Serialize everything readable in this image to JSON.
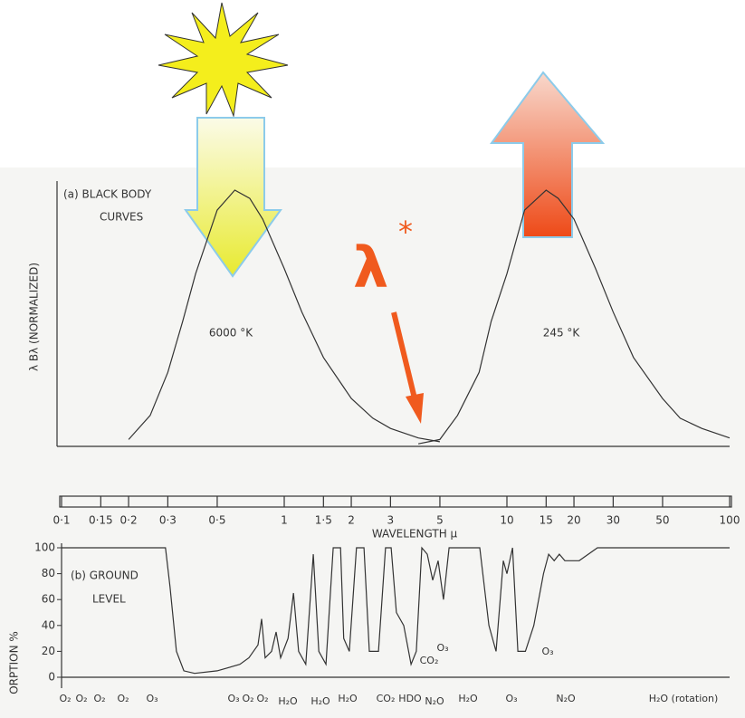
{
  "chart_data": [
    {
      "type": "line",
      "title": "(a) BLACK BODY",
      "subtitle": "CURVES",
      "y_label": "λ Bλ (NORMALIZED)",
      "x_label": "WAVELENGTH μ",
      "xscale": "log",
      "xlim": [
        0.1,
        100
      ],
      "ylim": [
        0,
        1
      ],
      "xticks": [
        {
          "value": 0.1,
          "label": "0·1"
        },
        {
          "value": 0.15,
          "label": "0·15"
        },
        {
          "value": 0.2,
          "label": "0·2"
        },
        {
          "value": 0.3,
          "label": "0·3"
        },
        {
          "value": 0.5,
          "label": "0·5"
        },
        1,
        {
          "value": 1.5,
          "label": "1·5"
        },
        2,
        3,
        5,
        10,
        15,
        20,
        30,
        50,
        100
      ],
      "series": [
        {
          "name": "6000 °K",
          "color": "#333333",
          "x": [
            0.2,
            0.25,
            0.3,
            0.35,
            0.4,
            0.5,
            0.6,
            0.7,
            0.8,
            1,
            1.2,
            1.5,
            2,
            2.5,
            3,
            4,
            5
          ],
          "values": [
            0.027,
            0.121,
            0.289,
            0.488,
            0.674,
            0.922,
            1.0,
            0.968,
            0.887,
            0.694,
            0.524,
            0.347,
            0.187,
            0.11,
            0.07,
            0.033,
            0.018
          ]
        },
        {
          "name": "245 °K",
          "color": "#333333",
          "x": [
            4,
            5,
            6,
            7.5,
            8.5,
            10,
            12,
            15,
            17,
            20,
            25,
            30,
            37,
            50,
            60,
            75,
            100
          ],
          "values": [
            0.01,
            0.027,
            0.121,
            0.289,
            0.488,
            0.674,
            0.922,
            1.0,
            0.968,
            0.887,
            0.694,
            0.524,
            0.347,
            0.187,
            0.11,
            0.07,
            0.033
          ]
        }
      ],
      "labels": [
        "λ",
        "*"
      ]
    },
    {
      "type": "line",
      "title": "(b) GROUND",
      "subtitle": "LEVEL",
      "y_label": "ORPTION %",
      "xscale": "log",
      "xlim": [
        0.1,
        100
      ],
      "ylim": [
        0,
        100
      ],
      "yticks": [
        0,
        20,
        40,
        60,
        80,
        100
      ],
      "series": [
        {
          "color": "#333333",
          "x": [
            0.1,
            0.293,
            0.307,
            0.328,
            0.354,
            0.396,
            0.5,
            0.632,
            0.694,
            0.762,
            0.791,
            0.821,
            0.877,
            0.919,
            0.963,
            1.04,
            1.1,
            1.16,
            1.25,
            1.35,
            1.43,
            1.54,
            1.66,
            1.79,
            1.85,
            1.96,
            2.11,
            2.28,
            2.41,
            2.65,
            2.85,
            3.02,
            3.19,
            3.44,
            3.71,
            3.92,
            4.15,
            4.39,
            4.64,
            4.91,
            5.19,
            5.5,
            7.55,
            8.3,
            8.94,
            9.63,
            10,
            10.6,
            11.2,
            12.1,
            13.2,
            14.6,
            15.4,
            16.3,
            17.2,
            18.2,
            21.1,
            25.5,
            100
          ],
          "values": [
            100,
            100,
            70,
            20,
            5,
            3,
            5,
            10,
            15,
            25,
            45,
            15,
            20,
            35,
            15,
            30,
            65,
            20,
            10,
            95,
            20,
            10,
            100,
            100,
            30,
            20,
            100,
            100,
            20,
            20,
            100,
            100,
            50,
            40,
            10,
            20,
            100,
            95,
            75,
            90,
            60,
            100,
            100,
            40,
            20,
            90,
            80,
            100,
            20,
            20,
            40,
            80,
            95,
            90,
            95,
            90,
            90,
            100,
            100
          ]
        }
      ],
      "annotations": [
        "O₂",
        "O₂",
        "O₂",
        "O₂",
        "O₃",
        "O₃",
        "O₂",
        "O₂",
        "H₂O",
        "H₂O",
        "H₂O",
        "CO₂",
        "HDO",
        "N₂O",
        "H₂O",
        "O₃",
        "N₂O",
        "H₂O (rotation)",
        "CO₂",
        "O₃",
        "O₃"
      ]
    }
  ]
}
